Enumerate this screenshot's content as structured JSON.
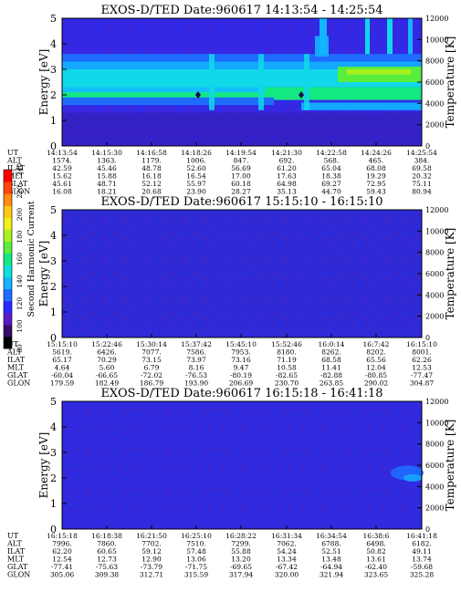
{
  "chart_data": [
    {
      "type": "heatmap",
      "title": "EXOS-D/TED   Date:960617   14:13:54 - 14:25:54",
      "ylabel": "Energy [eV]",
      "y2label": "Temperature [K]",
      "ylim": [
        0,
        5
      ],
      "y2lim": [
        0,
        12000
      ],
      "yticks": [
        "0",
        "1",
        "2",
        "3",
        "4",
        "5"
      ],
      "y2ticks": [
        "0",
        "2000",
        "4000",
        "6000",
        "8000",
        "10000",
        "12000"
      ],
      "row_labels": [
        "UT",
        "ALT",
        "ILAT",
        "MLT",
        "GLAT",
        "GLON"
      ],
      "columns": [
        [
          "14:13:54",
          "1574.",
          "42.59",
          "15.62",
          "45.61",
          "16.08"
        ],
        [
          "14:15:30",
          "1363.",
          "45.46",
          "15.88",
          "48.71",
          "18.21"
        ],
        [
          "14:16:58",
          "1179.",
          "48.78",
          "16.18",
          "52.12",
          "20.68"
        ],
        [
          "14:18:26",
          "1006.",
          "52.60",
          "16.54",
          "55.97",
          "23.90"
        ],
        [
          "14:19:54",
          "847.",
          "56.69",
          "17.00",
          "60.18",
          "28.27"
        ],
        [
          "14:21:30",
          "692.",
          "61.20",
          "17.63",
          "64.98",
          "35.13"
        ],
        [
          "14:22:58",
          "568.",
          "65.04",
          "18.38",
          "69.27",
          "44.70"
        ],
        [
          "14:24:26",
          "465.",
          "68.08",
          "19.29",
          "72.95",
          "59.43"
        ],
        [
          "14:25:54",
          "384.",
          "69.58",
          "20.32",
          "75.11",
          "80.94"
        ]
      ]
    },
    {
      "type": "heatmap",
      "title": "EXOS-D/TED   Date:960617   15:15:10 - 16:15:10",
      "ylabel": "Energy [eV]",
      "y2label": "Temperature [K]",
      "ylim": [
        0,
        5
      ],
      "y2lim": [
        0,
        12000
      ],
      "yticks": [
        "0",
        "1",
        "2",
        "3",
        "4",
        "5"
      ],
      "y2ticks": [
        "0",
        "2000",
        "4000",
        "6000",
        "8000",
        "10000",
        "12000"
      ],
      "row_labels": [
        "UT",
        "ALT",
        "ILAT",
        "MLT",
        "GLAT",
        "GLON"
      ],
      "columns": [
        [
          "15:15:10",
          "5619.",
          "65.17",
          "4.64",
          "-60.04",
          "179.59"
        ],
        [
          "15:22:46",
          "6426.",
          "70.29",
          "5.60",
          "-66.65",
          "182.49"
        ],
        [
          "15:30:14",
          "7077.",
          "73.15",
          "6.79",
          "-72.02",
          "186.79"
        ],
        [
          "15:37:42",
          "7586.",
          "73.97",
          "8.16",
          "-76.53",
          "193.90"
        ],
        [
          "15:45:10",
          "7953.",
          "73.16",
          "9.47",
          "-80.19",
          "206.69"
        ],
        [
          "15:52:46",
          "8180.",
          "71.19",
          "10.58",
          "-82.65",
          "230.70"
        ],
        [
          "16:0:14",
          "8262.",
          "68.58",
          "11.41",
          "-82.88",
          "263.85"
        ],
        [
          "16:7:42",
          "8202.",
          "65.56",
          "12.04",
          "-80.85",
          "290.02"
        ],
        [
          "16:15:10",
          "8001.",
          "62.26",
          "12.53",
          "-77.47",
          "304.87"
        ]
      ]
    },
    {
      "type": "heatmap",
      "title": "EXOS-D/TED   Date:960617   16:15:18 - 16:41:18",
      "ylabel": "Energy [eV]",
      "y2label": "Temperature [K]",
      "ylim": [
        0,
        5
      ],
      "y2lim": [
        0,
        12000
      ],
      "yticks": [
        "0",
        "1",
        "2",
        "3",
        "4",
        "5"
      ],
      "y2ticks": [
        "0",
        "2000",
        "4000",
        "6000",
        "8000",
        "10000",
        "12000"
      ],
      "row_labels": [
        "UT",
        "ALT",
        "ILAT",
        "MLT",
        "GLAT",
        "GLON"
      ],
      "columns": [
        [
          "16:15:18",
          "7996.",
          "62.20",
          "12.54",
          "-77.41",
          "305.06"
        ],
        [
          "16:18:38",
          "7860.",
          "60.65",
          "12.73",
          "-75.63",
          "309.38"
        ],
        [
          "16:21:50",
          "7702.",
          "59.12",
          "12.90",
          "-73.79",
          "312.71"
        ],
        [
          "16:25:10",
          "7510.",
          "57.48",
          "13.06",
          "-71.75",
          "315.59"
        ],
        [
          "16:28:22",
          "7299.",
          "55.88",
          "13.20",
          "-69.65",
          "317.94"
        ],
        [
          "16:31:34",
          "7062.",
          "54.24",
          "13.34",
          "-67.42",
          "320.00"
        ],
        [
          "16:34:54",
          "6788.",
          "52.51",
          "13.48",
          "-64.94",
          "321.94"
        ],
        [
          "16:38:6",
          "6498.",
          "50.82",
          "13.61",
          "-62.40",
          "323.65"
        ],
        [
          "16:41:18",
          "6182.",
          "49.11",
          "13.74",
          "-59.68",
          "325.28"
        ]
      ]
    }
  ],
  "colorbar": {
    "label": "Second Harmonic Current",
    "ticks": [
      "80",
      "100",
      "120",
      "140",
      "160",
      "180",
      "200",
      "220",
      "240"
    ],
    "colors": [
      "#000000",
      "#3a0a6a",
      "#5a1ac8",
      "#2a2aff",
      "#1e6cff",
      "#14b4ff",
      "#10e0e0",
      "#14e882",
      "#5aee3c",
      "#aaf01e",
      "#f0f01a",
      "#ffc814",
      "#ff8c10",
      "#ff460e",
      "#ff0000"
    ]
  }
}
